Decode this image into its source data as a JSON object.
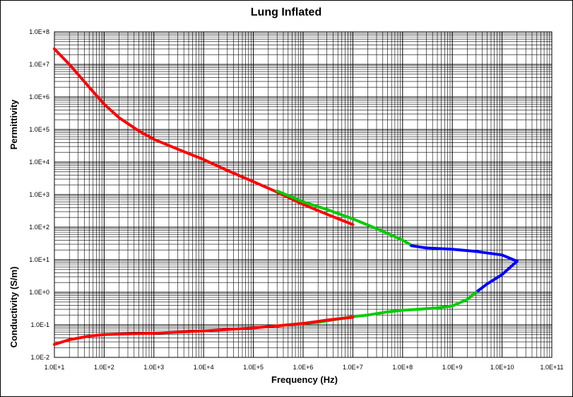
{
  "chart_data": {
    "type": "line",
    "title": "Lung Inflated",
    "xlabel": "Frequency (Hz)",
    "ylabel_top": "Permittivity",
    "ylabel_bottom": "Conductivity (S/m)",
    "x_scale": "log",
    "y_scale": "log",
    "xlim": [
      10,
      100000000000
    ],
    "ylim": [
      0.01,
      100000000
    ],
    "grid": true,
    "legend": "none",
    "x_ticks": [
      "1.0E+1",
      "1.0E+2",
      "1.0E+3",
      "1.0E+4",
      "1.0E+5",
      "1.0E+6",
      "1.0E+7",
      "1.0E+8",
      "1.0E+9",
      "1.0E+10",
      "1.0E+11"
    ],
    "y_ticks": [
      "1.0E+8",
      "1.0E+7",
      "1.0E+6",
      "1.0E+5",
      "1.0E+4",
      "1.0E+3",
      "1.0E+2",
      "1.0E+1",
      "1.0E+0",
      "1.0E-1",
      "1.0E-2"
    ],
    "colors": {
      "red": "#ff0000",
      "green": "#00cc00",
      "blue": "#0000ff"
    },
    "series": [
      {
        "color": "red",
        "quantity": "permittivity",
        "x": [
          10,
          20,
          50,
          100,
          200,
          500,
          1000,
          3000,
          10000,
          30000,
          100000,
          300000,
          1000000,
          3000000,
          10000000
        ],
        "y": [
          30000000,
          10000000,
          2000000,
          600000,
          230000,
          90000,
          50000,
          25000,
          12000,
          5500,
          2500,
          1200,
          500,
          250,
          120
        ]
      },
      {
        "color": "green",
        "quantity": "permittivity",
        "x": [
          300000,
          1000000,
          3000000,
          10000000,
          30000000,
          100000000,
          150000000
        ],
        "y": [
          1300,
          600,
          350,
          180,
          90,
          40,
          28
        ]
      },
      {
        "color": "blue",
        "quantity": "permittivity",
        "x": [
          150000000,
          300000000,
          1000000000,
          3000000000,
          10000000000,
          20000000000
        ],
        "y": [
          27,
          23,
          21,
          18,
          14,
          9
        ]
      },
      {
        "color": "blue",
        "quantity": "conductivity",
        "x": [
          20000000000,
          10000000000,
          5000000000,
          3000000000
        ],
        "y": [
          9,
          3.5,
          1.8,
          1.0
        ]
      },
      {
        "color": "green",
        "quantity": "conductivity",
        "x": [
          3000000000,
          2000000000,
          1000000000,
          500000000,
          200000000,
          100000000,
          50000000,
          20000000,
          10000000,
          5000000,
          2000000,
          1000000,
          500000,
          300000
        ],
        "y": [
          1.0,
          0.6,
          0.38,
          0.33,
          0.3,
          0.28,
          0.25,
          0.2,
          0.18,
          0.15,
          0.12,
          0.11,
          0.1,
          0.09
        ]
      },
      {
        "color": "red",
        "quantity": "conductivity",
        "x": [
          10,
          20,
          50,
          100,
          300,
          1000,
          10000,
          100000,
          1000000,
          3000000,
          10000000
        ],
        "y": [
          0.025,
          0.035,
          0.045,
          0.05,
          0.053,
          0.055,
          0.065,
          0.08,
          0.11,
          0.14,
          0.17
        ]
      }
    ]
  }
}
